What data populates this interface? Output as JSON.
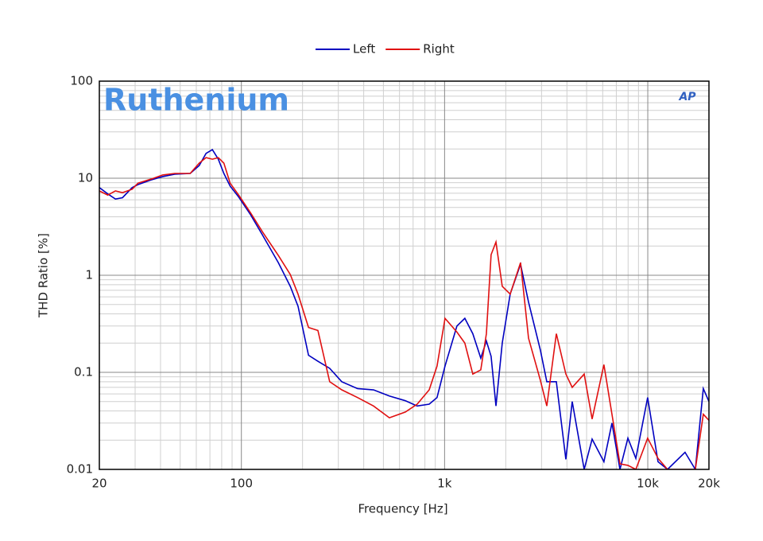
{
  "chart_data": {
    "type": "line",
    "title": "Ruthenium",
    "logo": "AP",
    "xlabel": "Frequency [Hz]",
    "ylabel": "THD Ratio [%]",
    "xscale": "log",
    "yscale": "log",
    "grid": true,
    "legend": "top",
    "xlim": [
      20,
      20000
    ],
    "ylim": [
      0.01,
      100
    ],
    "xticks": [
      20,
      100,
      {
        "value": 1000,
        "label": "1k"
      },
      {
        "value": 10000,
        "label": "10k"
      },
      {
        "value": 20000,
        "label": "20k"
      }
    ],
    "yticks": [
      0.01,
      0.1,
      1,
      10,
      100
    ],
    "xminorticks": [
      30,
      40,
      50,
      60,
      70,
      80,
      90,
      200,
      300,
      400,
      500,
      600,
      700,
      800,
      900,
      2000,
      3000,
      4000,
      5000,
      6000,
      7000,
      8000,
      9000
    ],
    "yminorticks": [
      0.02,
      0.03,
      0.04,
      0.05,
      0.06,
      0.07,
      0.08,
      0.09,
      0.2,
      0.3,
      0.4,
      0.5,
      0.6,
      0.7,
      0.8,
      0.9,
      2,
      3,
      4,
      5,
      6,
      7,
      8,
      9,
      20,
      30,
      40,
      50,
      60,
      70,
      80,
      90
    ],
    "x": [
      20,
      22,
      24,
      26,
      29,
      31,
      36,
      41,
      47,
      56,
      62,
      67,
      72,
      77,
      82,
      88,
      97,
      111,
      127,
      152,
      174,
      190,
      214,
      238,
      272,
      312,
      373,
      447,
      535,
      641,
      733,
      840,
      918,
      1005,
      1150,
      1258,
      1377,
      1507,
      1606,
      1694,
      1790,
      1922,
      2103,
      2365,
      2589,
      2960,
      3185,
      3548,
      3952,
      4247,
      4864,
      5322,
      6083,
      6663,
      7296,
      7983,
      8734,
      9984,
      11229,
      12508,
      15250,
      17140,
      18760,
      20000
    ],
    "series": [
      {
        "name": "Left",
        "color": "#0000c0",
        "values": [
          8.0,
          6.9,
          6.1,
          6.3,
          8.0,
          8.6,
          9.6,
          10.4,
          11,
          11.2,
          13.5,
          18,
          19.7,
          15.7,
          11.2,
          8.3,
          6.4,
          4.2,
          2.6,
          1.35,
          0.77,
          0.48,
          0.15,
          0.13,
          0.11,
          0.08,
          0.068,
          0.066,
          0.057,
          0.051,
          0.045,
          0.047,
          0.055,
          0.116,
          0.3,
          0.36,
          0.25,
          0.14,
          0.21,
          0.146,
          0.045,
          0.2,
          0.64,
          1.3,
          0.53,
          0.17,
          0.08,
          0.08,
          0.0127,
          0.05,
          0.01,
          0.0205,
          0.012,
          0.03,
          0.01,
          0.021,
          0.013,
          0.055,
          0.012,
          0.01,
          0.015,
          0.01,
          0.068,
          0.05
        ]
      },
      {
        "name": "Right",
        "color": "#e01010",
        "values": [
          7.4,
          6.7,
          7.4,
          7.1,
          7.7,
          8.9,
          9.8,
          10.8,
          11.2,
          11.2,
          14.3,
          16.3,
          15.7,
          16.3,
          14.3,
          8.9,
          6.7,
          4.4,
          2.8,
          1.6,
          1.02,
          0.64,
          0.29,
          0.27,
          0.08,
          0.066,
          0.055,
          0.045,
          0.034,
          0.039,
          0.047,
          0.066,
          0.116,
          0.36,
          0.26,
          0.2,
          0.096,
          0.106,
          0.25,
          1.63,
          2.2,
          0.77,
          0.64,
          1.35,
          0.225,
          0.083,
          0.045,
          0.25,
          0.096,
          0.07,
          0.096,
          0.033,
          0.12,
          0.037,
          0.0114,
          0.011,
          0.01,
          0.021,
          0.013,
          0.01,
          0.01,
          0.01,
          0.037,
          0.032
        ]
      }
    ]
  }
}
